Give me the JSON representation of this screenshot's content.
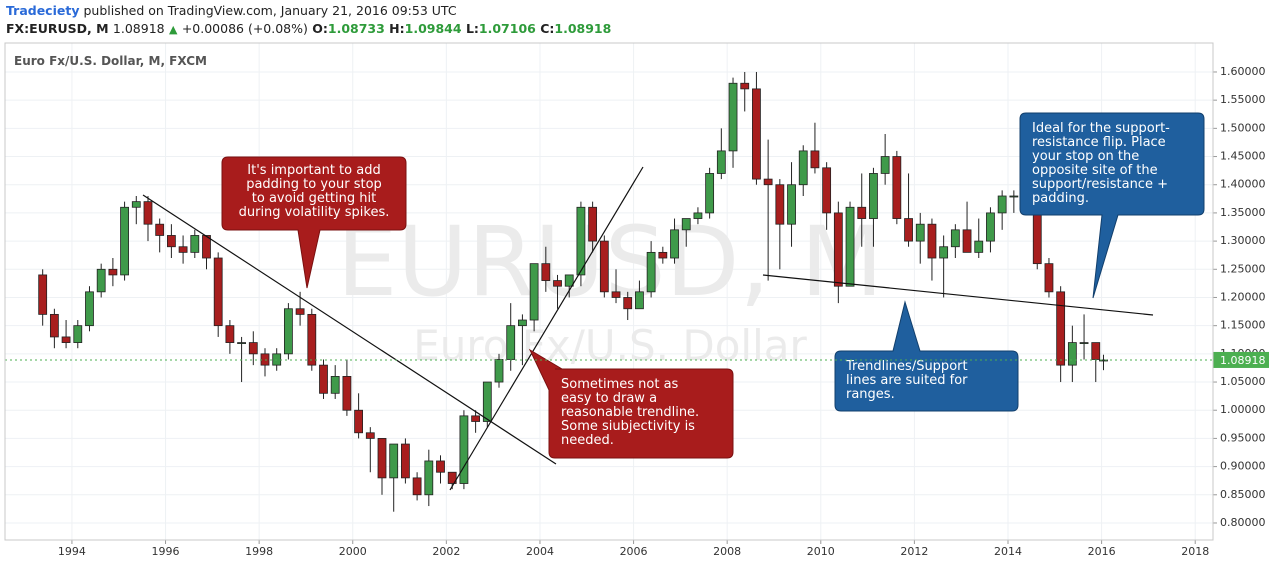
{
  "header": {
    "author": "Tradeciety",
    "published": "published on TradingView.com, January 21, 2016 09:53 UTC",
    "symbol": "FX:EURUSD, M",
    "last": "1.08918",
    "change": "+0.00086 (+0.08%)",
    "ohlc": [
      {
        "label": "O:",
        "value": "1.08733"
      },
      {
        "label": "H:",
        "value": "1.09844"
      },
      {
        "label": "L:",
        "value": "1.07106"
      },
      {
        "label": "C:",
        "value": "1.08918"
      }
    ]
  },
  "chart_data": {
    "type": "candlestick",
    "title": "Euro Fx/U.S. Dollar, M, FXCM",
    "watermark": [
      "EURUSD, M",
      "Euro Fx/U.S. Dollar"
    ],
    "up_color": "#3f9a4a",
    "down_color": "#a81e1e",
    "grid": true,
    "x": [
      1993.375,
      1993.625,
      1993.875,
      1994.125,
      1994.375,
      1994.625,
      1994.875,
      1995.125,
      1995.375,
      1995.625,
      1995.875,
      1996.125,
      1996.375,
      1996.625,
      1996.875,
      1997.125,
      1997.375,
      1997.625,
      1997.875,
      1998.125,
      1998.375,
      1998.625,
      1998.875,
      1999.125,
      1999.375,
      1999.625,
      1999.875,
      2000.125,
      2000.375,
      2000.625,
      2000.875,
      2001.125,
      2001.375,
      2001.625,
      2001.875,
      2002.125,
      2002.375,
      2002.625,
      2002.875,
      2003.125,
      2003.375,
      2003.625,
      2003.875,
      2004.125,
      2004.375,
      2004.625,
      2004.875,
      2005.125,
      2005.375,
      2005.625,
      2005.875,
      2006.125,
      2006.375,
      2006.625,
      2006.875,
      2007.125,
      2007.375,
      2007.625,
      2007.875,
      2008.125,
      2008.375,
      2008.625,
      2008.875,
      2009.125,
      2009.375,
      2009.625,
      2009.875,
      2010.125,
      2010.375,
      2010.625,
      2010.875,
      2011.125,
      2011.375,
      2011.625,
      2011.875,
      2012.125,
      2012.375,
      2012.625,
      2012.875,
      2013.125,
      2013.375,
      2013.625,
      2013.875,
      2014.125,
      2014.375,
      2014.625,
      2014.875,
      2015.125,
      2015.375,
      2015.625,
      2015.875,
      2016.04
    ],
    "open": [
      1.24,
      1.17,
      1.13,
      1.12,
      1.15,
      1.21,
      1.25,
      1.24,
      1.36,
      1.37,
      1.33,
      1.31,
      1.29,
      1.28,
      1.31,
      1.27,
      1.15,
      1.12,
      1.12,
      1.1,
      1.08,
      1.1,
      1.18,
      1.17,
      1.08,
      1.03,
      1.06,
      1.0,
      0.96,
      0.95,
      0.88,
      0.94,
      0.88,
      0.85,
      0.91,
      0.89,
      0.87,
      0.99,
      0.98,
      1.05,
      1.09,
      1.15,
      1.16,
      1.26,
      1.23,
      1.22,
      1.24,
      1.36,
      1.3,
      1.21,
      1.2,
      1.18,
      1.21,
      1.28,
      1.27,
      1.32,
      1.34,
      1.35,
      1.42,
      1.46,
      1.58,
      1.57,
      1.41,
      1.4,
      1.33,
      1.4,
      1.46,
      1.43,
      1.35,
      1.22,
      1.36,
      1.34,
      1.42,
      1.45,
      1.34,
      1.3,
      1.33,
      1.27,
      1.29,
      1.32,
      1.28,
      1.3,
      1.35,
      1.38,
      1.38,
      1.37,
      1.26,
      1.21,
      1.08,
      1.12,
      1.12,
      1.08733
    ],
    "high": [
      1.25,
      1.18,
      1.16,
      1.16,
      1.22,
      1.26,
      1.27,
      1.37,
      1.38,
      1.38,
      1.34,
      1.33,
      1.31,
      1.32,
      1.31,
      1.28,
      1.16,
      1.13,
      1.14,
      1.11,
      1.11,
      1.19,
      1.21,
      1.18,
      1.09,
      1.08,
      1.09,
      1.03,
      0.97,
      0.95,
      0.94,
      0.95,
      0.89,
      0.93,
      0.92,
      0.89,
      1.0,
      1.0,
      1.05,
      1.1,
      1.19,
      1.17,
      1.26,
      1.29,
      1.24,
      1.24,
      1.37,
      1.37,
      1.31,
      1.25,
      1.21,
      1.23,
      1.3,
      1.29,
      1.34,
      1.34,
      1.36,
      1.43,
      1.5,
      1.59,
      1.6,
      1.6,
      1.48,
      1.41,
      1.44,
      1.47,
      1.51,
      1.44,
      1.37,
      1.37,
      1.42,
      1.43,
      1.49,
      1.46,
      1.42,
      1.35,
      1.34,
      1.31,
      1.33,
      1.37,
      1.34,
      1.36,
      1.39,
      1.39,
      1.4,
      1.37,
      1.27,
      1.22,
      1.15,
      1.17,
      1.12,
      1.09844
    ],
    "low": [
      1.15,
      1.11,
      1.11,
      1.11,
      1.14,
      1.2,
      1.22,
      1.23,
      1.33,
      1.3,
      1.28,
      1.27,
      1.26,
      1.27,
      1.25,
      1.13,
      1.1,
      1.05,
      1.08,
      1.06,
      1.07,
      1.09,
      1.15,
      1.07,
      1.02,
      1.02,
      0.99,
      0.95,
      0.89,
      0.85,
      0.82,
      0.87,
      0.84,
      0.83,
      0.87,
      0.86,
      0.86,
      0.96,
      0.97,
      1.04,
      1.07,
      1.08,
      1.14,
      1.21,
      1.18,
      1.2,
      1.22,
      1.28,
      1.2,
      1.19,
      1.16,
      1.18,
      1.2,
      1.26,
      1.26,
      1.29,
      1.33,
      1.34,
      1.41,
      1.43,
      1.53,
      1.4,
      1.23,
      1.25,
      1.29,
      1.38,
      1.42,
      1.32,
      1.19,
      1.22,
      1.29,
      1.29,
      1.4,
      1.33,
      1.29,
      1.26,
      1.23,
      1.2,
      1.27,
      1.28,
      1.27,
      1.28,
      1.32,
      1.35,
      1.35,
      1.25,
      1.2,
      1.05,
      1.05,
      1.09,
      1.05,
      1.07106
    ],
    "close": [
      1.17,
      1.13,
      1.12,
      1.15,
      1.21,
      1.25,
      1.24,
      1.36,
      1.37,
      1.33,
      1.31,
      1.29,
      1.28,
      1.31,
      1.27,
      1.15,
      1.12,
      1.12,
      1.1,
      1.08,
      1.1,
      1.18,
      1.17,
      1.08,
      1.03,
      1.06,
      1.0,
      0.96,
      0.95,
      0.88,
      0.94,
      0.88,
      0.85,
      0.91,
      0.89,
      0.87,
      0.99,
      0.98,
      1.05,
      1.09,
      1.15,
      1.16,
      1.26,
      1.23,
      1.22,
      1.24,
      1.36,
      1.3,
      1.21,
      1.2,
      1.18,
      1.21,
      1.28,
      1.27,
      1.32,
      1.34,
      1.35,
      1.42,
      1.46,
      1.58,
      1.57,
      1.41,
      1.4,
      1.33,
      1.4,
      1.46,
      1.43,
      1.35,
      1.22,
      1.36,
      1.34,
      1.42,
      1.45,
      1.34,
      1.3,
      1.33,
      1.27,
      1.29,
      1.32,
      1.28,
      1.3,
      1.35,
      1.38,
      1.38,
      1.37,
      1.26,
      1.21,
      1.08,
      1.12,
      1.12,
      1.09,
      1.08918
    ],
    "xlim": [
      1992.57,
      2018.38
    ],
    "ylim": [
      0.7698,
      1.6514
    ],
    "xticks": [
      1994,
      1996,
      1998,
      2000,
      2002,
      2004,
      2006,
      2008,
      2010,
      2012,
      2014,
      2016,
      2018
    ],
    "yticks": [
      {
        "value": 0.8,
        "label": "0.80000"
      },
      {
        "value": 0.85,
        "label": "0.85000"
      },
      {
        "value": 0.9,
        "label": "0.90000"
      },
      {
        "value": 0.95,
        "label": "0.95000"
      },
      {
        "value": 1.0,
        "label": "1.00000"
      },
      {
        "value": 1.05,
        "label": "1.05000"
      },
      {
        "value": 1.1,
        "label": "1.10000"
      },
      {
        "value": 1.15,
        "label": "1.15000"
      },
      {
        "value": 1.2,
        "label": "1.20000"
      },
      {
        "value": 1.25,
        "label": "1.25000"
      },
      {
        "value": 1.3,
        "label": "1.30000"
      },
      {
        "value": 1.35,
        "label": "1.35000"
      },
      {
        "value": 1.4,
        "label": "1.40000"
      },
      {
        "value": 1.45,
        "label": "1.45000"
      },
      {
        "value": 1.5,
        "label": "1.50000"
      },
      {
        "value": 1.55,
        "label": "1.55000"
      },
      {
        "value": 1.6,
        "label": "1.60000"
      }
    ],
    "last_price": {
      "value": 1.08918,
      "label": "1.08918",
      "color": "#4caf50"
    },
    "annotations": [
      {
        "lines": [
          "It's important to add",
          "padding to your stop",
          "to avoid getting hit",
          "during volatility spikes."
        ]
      },
      {
        "lines": [
          "Sometimes not as",
          "easy to draw a",
          "reasonable trendline.",
          "Some siubjectivity is",
          "needed."
        ]
      },
      {
        "lines": [
          "Trendlines/Support",
          "lines are suited for",
          "ranges."
        ]
      },
      {
        "lines": [
          "Ideal for the support-",
          "resistance flip. Place",
          "your stop on the",
          "opposite site of the",
          "support/resistance +",
          "padding."
        ]
      }
    ]
  }
}
